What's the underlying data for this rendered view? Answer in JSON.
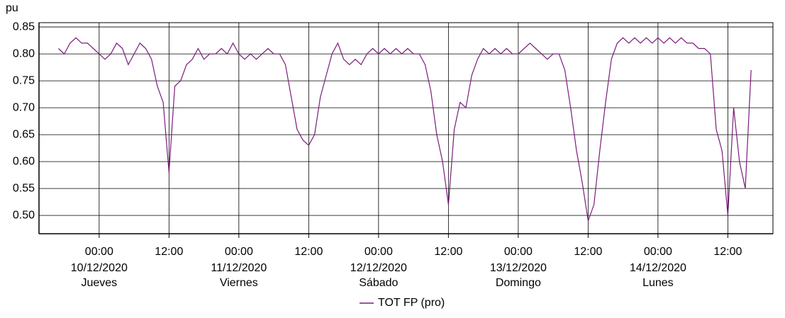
{
  "chart_data": {
    "type": "line",
    "y_label": "pu",
    "xlim": [
      "2020-12-09T13:40",
      "2020-12-14T19:45"
    ],
    "ylim": [
      0.466,
      0.858
    ],
    "yticks": [
      {
        "value": 0.5,
        "label": "0.50"
      },
      0.55,
      {
        "value": 0.6,
        "label": "0.60"
      },
      0.65,
      {
        "value": 0.7,
        "label": "0.70"
      },
      0.75,
      {
        "value": 0.8,
        "label": "0.80"
      },
      0.85
    ],
    "xticks": [
      {
        "value": "2020-12-10T00:00",
        "label": "00:00"
      },
      {
        "value": "2020-12-10T12:00",
        "label": "12:00"
      },
      {
        "value": "2020-12-11T00:00",
        "label": "00:00"
      },
      {
        "value": "2020-12-11T12:00",
        "label": "12:00"
      },
      {
        "value": "2020-12-12T00:00",
        "label": "00:00"
      },
      {
        "value": "2020-12-12T12:00",
        "label": "12:00"
      },
      {
        "value": "2020-12-13T00:00",
        "label": "00:00"
      },
      {
        "value": "2020-12-13T12:00",
        "label": "12:00"
      },
      {
        "value": "2020-12-14T00:00",
        "label": "00:00"
      },
      {
        "value": "2020-12-14T12:00",
        "label": "12:00"
      }
    ],
    "x_date_labels": [
      {
        "value": "2020-12-10T00:00",
        "date": "10/12/2020",
        "day": "Jueves"
      },
      {
        "value": "2020-12-11T00:00",
        "date": "11/12/2020",
        "day": "Viernes"
      },
      {
        "value": "2020-12-12T00:00",
        "date": "12/12/2020",
        "day": "Sábado"
      },
      {
        "value": "2020-12-13T00:00",
        "date": "13/12/2020",
        "day": "Domingo"
      },
      {
        "value": "2020-12-14T00:00",
        "date": "14/12/2020",
        "day": "Lunes"
      }
    ],
    "grid": true,
    "legend": "bottom",
    "x": [
      "2020-12-09T17:00",
      "2020-12-09T18:00",
      "2020-12-09T19:00",
      "2020-12-09T20:00",
      "2020-12-09T21:00",
      "2020-12-09T22:00",
      "2020-12-09T23:00",
      "2020-12-10T00:00",
      "2020-12-10T01:00",
      "2020-12-10T02:00",
      "2020-12-10T03:00",
      "2020-12-10T04:00",
      "2020-12-10T05:00",
      "2020-12-10T06:00",
      "2020-12-10T07:00",
      "2020-12-10T08:00",
      "2020-12-10T09:00",
      "2020-12-10T10:00",
      "2020-12-10T11:00",
      "2020-12-10T12:00",
      "2020-12-10T13:00",
      "2020-12-10T14:00",
      "2020-12-10T15:00",
      "2020-12-10T16:00",
      "2020-12-10T17:00",
      "2020-12-10T18:00",
      "2020-12-10T19:00",
      "2020-12-10T20:00",
      "2020-12-10T21:00",
      "2020-12-10T22:00",
      "2020-12-10T23:00",
      "2020-12-11T00:00",
      "2020-12-11T01:00",
      "2020-12-11T02:00",
      "2020-12-11T03:00",
      "2020-12-11T04:00",
      "2020-12-11T05:00",
      "2020-12-11T06:00",
      "2020-12-11T07:00",
      "2020-12-11T08:00",
      "2020-12-11T09:00",
      "2020-12-11T10:00",
      "2020-12-11T11:00",
      "2020-12-11T12:00",
      "2020-12-11T13:00",
      "2020-12-11T14:00",
      "2020-12-11T15:00",
      "2020-12-11T16:00",
      "2020-12-11T17:00",
      "2020-12-11T18:00",
      "2020-12-11T19:00",
      "2020-12-11T20:00",
      "2020-12-11T21:00",
      "2020-12-11T22:00",
      "2020-12-11T23:00",
      "2020-12-12T00:00",
      "2020-12-12T01:00",
      "2020-12-12T02:00",
      "2020-12-12T03:00",
      "2020-12-12T04:00",
      "2020-12-12T05:00",
      "2020-12-12T06:00",
      "2020-12-12T07:00",
      "2020-12-12T08:00",
      "2020-12-12T09:00",
      "2020-12-12T10:00",
      "2020-12-12T11:00",
      "2020-12-12T12:00",
      "2020-12-12T13:00",
      "2020-12-12T14:00",
      "2020-12-12T15:00",
      "2020-12-12T16:00",
      "2020-12-12T17:00",
      "2020-12-12T18:00",
      "2020-12-12T19:00",
      "2020-12-12T20:00",
      "2020-12-12T21:00",
      "2020-12-12T22:00",
      "2020-12-12T23:00",
      "2020-12-13T00:00",
      "2020-12-13T01:00",
      "2020-12-13T02:00",
      "2020-12-13T03:00",
      "2020-12-13T04:00",
      "2020-12-13T05:00",
      "2020-12-13T06:00",
      "2020-12-13T07:00",
      "2020-12-13T08:00",
      "2020-12-13T09:00",
      "2020-12-13T10:00",
      "2020-12-13T11:00",
      "2020-12-13T12:00",
      "2020-12-13T13:00",
      "2020-12-13T14:00",
      "2020-12-13T15:00",
      "2020-12-13T16:00",
      "2020-12-13T17:00",
      "2020-12-13T18:00",
      "2020-12-13T19:00",
      "2020-12-13T20:00",
      "2020-12-13T21:00",
      "2020-12-13T22:00",
      "2020-12-13T23:00",
      "2020-12-14T00:00",
      "2020-12-14T01:00",
      "2020-12-14T02:00",
      "2020-12-14T03:00",
      "2020-12-14T04:00",
      "2020-12-14T05:00",
      "2020-12-14T06:00",
      "2020-12-14T07:00",
      "2020-12-14T08:00",
      "2020-12-14T09:00",
      "2020-12-14T10:00",
      "2020-12-14T11:00",
      "2020-12-14T12:00",
      "2020-12-14T13:00",
      "2020-12-14T14:00",
      "2020-12-14T15:00",
      "2020-12-14T16:00"
    ],
    "series": [
      {
        "name": "TOT FP (pro)",
        "color": "#7b1c7b",
        "values": [
          0.81,
          0.8,
          0.82,
          0.83,
          0.82,
          0.82,
          0.81,
          0.8,
          0.79,
          0.8,
          0.82,
          0.81,
          0.78,
          0.8,
          0.82,
          0.81,
          0.79,
          0.74,
          0.71,
          0.58,
          0.74,
          0.75,
          0.78,
          0.79,
          0.81,
          0.79,
          0.8,
          0.8,
          0.81,
          0.8,
          0.82,
          0.8,
          0.79,
          0.8,
          0.79,
          0.8,
          0.81,
          0.8,
          0.8,
          0.78,
          0.72,
          0.66,
          0.64,
          0.63,
          0.65,
          0.72,
          0.76,
          0.8,
          0.82,
          0.79,
          0.78,
          0.79,
          0.78,
          0.8,
          0.81,
          0.8,
          0.81,
          0.8,
          0.81,
          0.8,
          0.81,
          0.8,
          0.8,
          0.78,
          0.73,
          0.65,
          0.6,
          0.52,
          0.66,
          0.71,
          0.7,
          0.76,
          0.79,
          0.81,
          0.8,
          0.81,
          0.8,
          0.81,
          0.8,
          0.8,
          0.81,
          0.82,
          0.81,
          0.8,
          0.79,
          0.8,
          0.8,
          0.77,
          0.7,
          0.62,
          0.56,
          0.49,
          0.52,
          0.62,
          0.71,
          0.79,
          0.82,
          0.83,
          0.82,
          0.83,
          0.82,
          0.83,
          0.82,
          0.83,
          0.82,
          0.83,
          0.82,
          0.83,
          0.82,
          0.82,
          0.81,
          0.81,
          0.8,
          0.66,
          0.62,
          0.5,
          0.7,
          0.6,
          0.55,
          0.77
        ]
      }
    ]
  }
}
